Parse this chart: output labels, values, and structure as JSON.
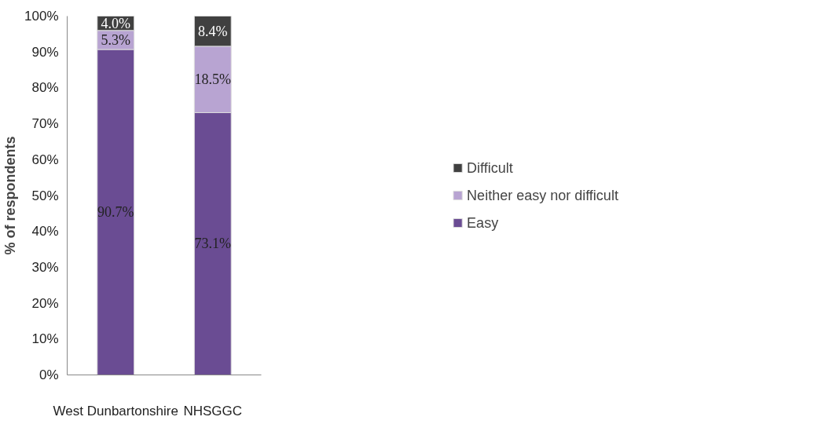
{
  "chart_data": {
    "type": "bar",
    "stacked": true,
    "ylabel": "% of respondents",
    "categories": [
      "West Dunbartonshire",
      "NHSGGC"
    ],
    "series": [
      {
        "name": "Easy",
        "color": "#6a4c93",
        "values": [
          90.7,
          73.1
        ],
        "value_labels": [
          "90.7%",
          "73.1%"
        ]
      },
      {
        "name": "Neither easy nor difficult",
        "color": "#b8a4d2",
        "values": [
          5.3,
          18.5
        ],
        "value_labels": [
          "5.3%",
          "18.5%"
        ]
      },
      {
        "name": "Difficult",
        "color": "#404040",
        "values": [
          4.0,
          8.4
        ],
        "value_labels": [
          "4.0%",
          "8.4%"
        ]
      }
    ],
    "ylim": [
      0,
      100
    ],
    "yticks": [
      {
        "value": 0,
        "label": "0%"
      },
      {
        "value": 10,
        "label": "10%"
      },
      {
        "value": 20,
        "label": "20%"
      },
      {
        "value": 30,
        "label": "30%"
      },
      {
        "value": 40,
        "label": "40%"
      },
      {
        "value": 50,
        "label": "50%"
      },
      {
        "value": 60,
        "label": "60%"
      },
      {
        "value": 70,
        "label": "70%"
      },
      {
        "value": 80,
        "label": "80%"
      },
      {
        "value": 90,
        "label": "90%"
      },
      {
        "value": 100,
        "label": "100%"
      }
    ],
    "grid": false,
    "legend": "right"
  }
}
